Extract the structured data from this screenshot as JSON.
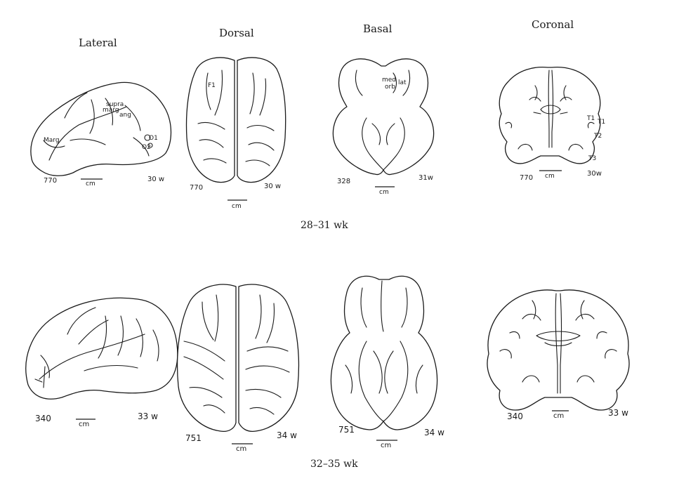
{
  "view_titles": {
    "lateral": "Lateral",
    "dorsal": "Dorsal",
    "basal": "Basal",
    "coronal": "Coronal"
  },
  "rows": [
    {
      "age_range": "28–31 wk",
      "panels": {
        "lateral": {
          "specimen": "770",
          "age": "30 w",
          "scale": "cm",
          "labels": [
            "supra",
            "marg",
            "ang",
            "Marg",
            "O1",
            "O2"
          ]
        },
        "dorsal": {
          "specimen": "770",
          "age": "30 w",
          "scale": "cm",
          "labels": [
            "F1"
          ]
        },
        "basal": {
          "specimen": "328",
          "age": "31w",
          "scale": "cm",
          "labels": [
            "med",
            "lat",
            "orb"
          ]
        },
        "coronal": {
          "specimen": "770",
          "age": "30w",
          "scale": "cm",
          "labels": [
            "T1",
            "T1",
            "T2",
            "T3"
          ]
        }
      }
    },
    {
      "age_range": "32–35 wk",
      "panels": {
        "lateral": {
          "specimen": "340",
          "age": "33 w",
          "scale": "cm"
        },
        "dorsal": {
          "specimen": "751",
          "age": "34 w",
          "scale": "cm"
        },
        "basal": {
          "specimen": "751",
          "age": "34 w",
          "scale": "cm"
        },
        "coronal": {
          "specimen": "340",
          "age": "33 w",
          "scale": "cm"
        }
      }
    }
  ]
}
